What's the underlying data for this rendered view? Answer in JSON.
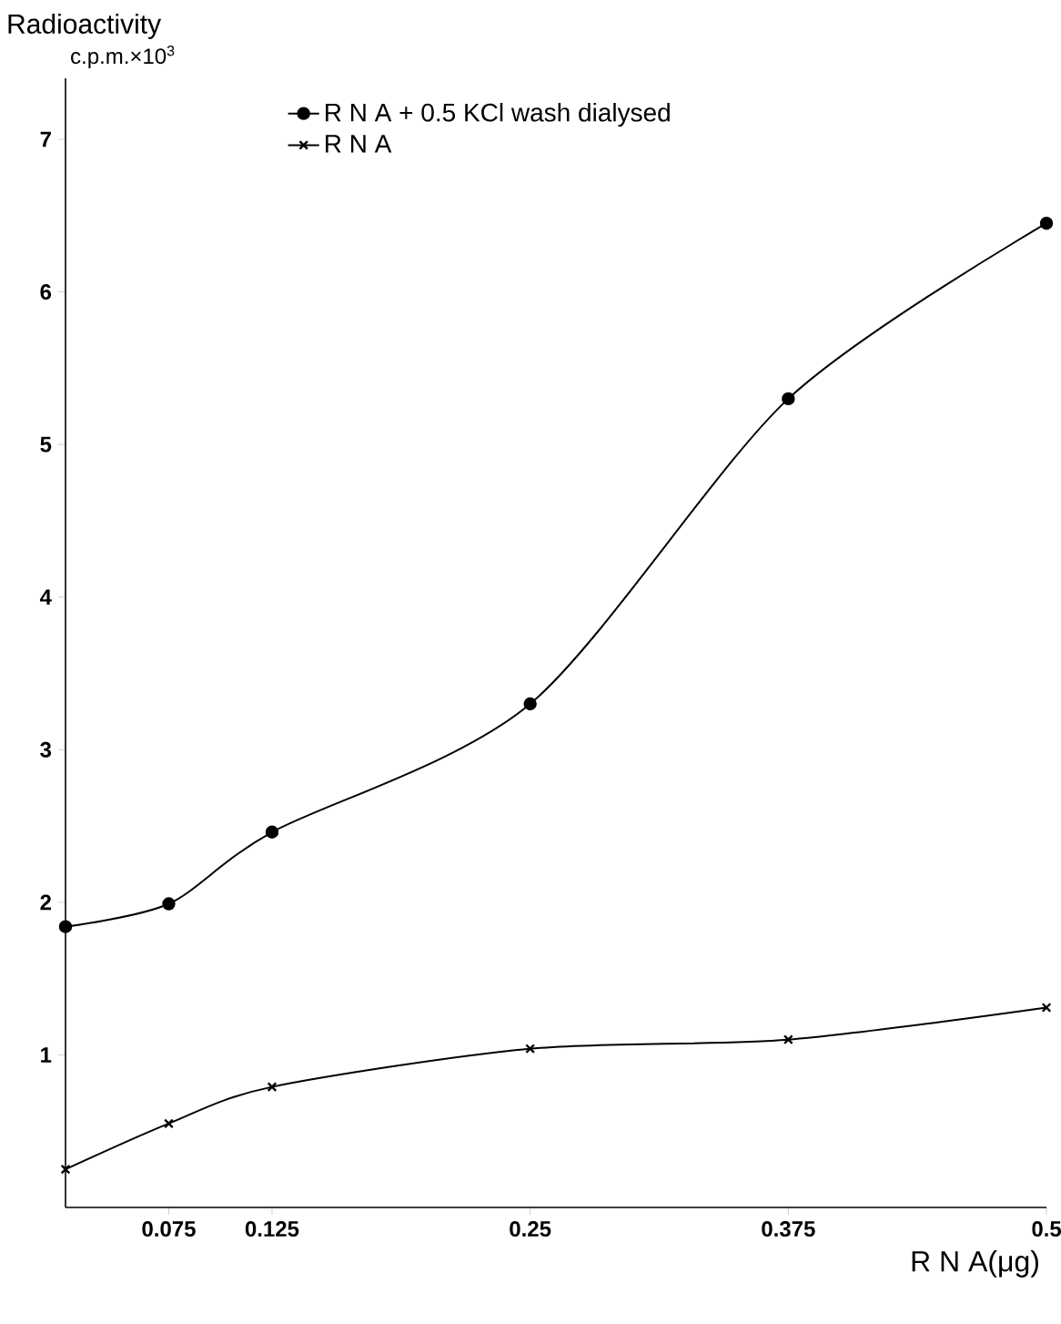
{
  "chart_data": {
    "type": "line",
    "ylabel": "Radioactivity",
    "xlabel": "R N A(μg)",
    "annotations": [
      "c.p.m.×10$^{3}$"
    ],
    "x": [
      0.025,
      0.075,
      0.125,
      0.25,
      0.375,
      0.5
    ],
    "series": [
      {
        "name": "R N A  + 0.5 KCl wash dialysed",
        "color": "#000000",
        "marker": "circle",
        "values": [
          1.84,
          1.99,
          2.46,
          3.3,
          5.3,
          6.45
        ]
      },
      {
        "name": "R N A",
        "color": "#000000",
        "marker": "cross",
        "values": [
          0.25,
          0.55,
          0.79,
          1.04,
          1.1,
          1.31
        ]
      }
    ],
    "xlim": [
      0.025,
      0.5
    ],
    "ylim": [
      0,
      7.4
    ],
    "xticks": [
      0.075,
      0.125,
      0.25,
      0.375,
      0.5
    ],
    "yticks": [
      1,
      2,
      3,
      4,
      5,
      6,
      7
    ],
    "legend": "top",
    "grid": false,
    "line_style": "solid"
  }
}
